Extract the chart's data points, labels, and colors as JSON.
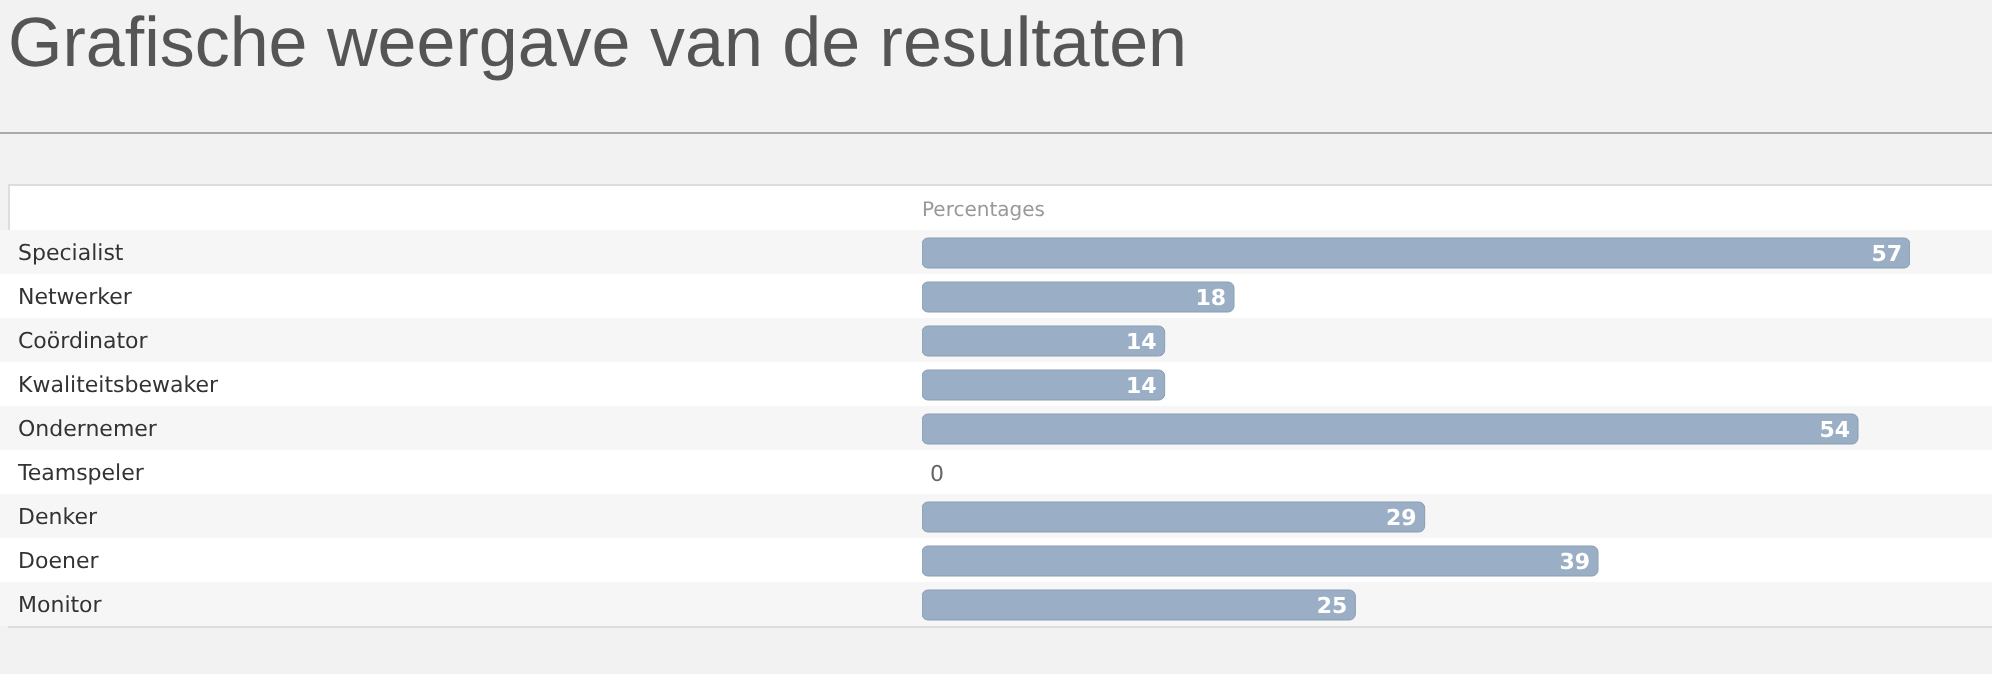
{
  "chart_data": {
    "type": "bar",
    "orientation": "horizontal",
    "title": "Grafische weergave van de resultaten",
    "xlabel": "Percentages",
    "categories": [
      "Specialist",
      "Netwerker",
      "Coördinator",
      "Kwaliteitsbewaker",
      "Ondernemer",
      "Teamspeler",
      "Denker",
      "Doener",
      "Monitor"
    ],
    "values": [
      57,
      18,
      14,
      14,
      54,
      0,
      29,
      39,
      25
    ],
    "color": "#9aafc6",
    "data_labels": true
  }
}
